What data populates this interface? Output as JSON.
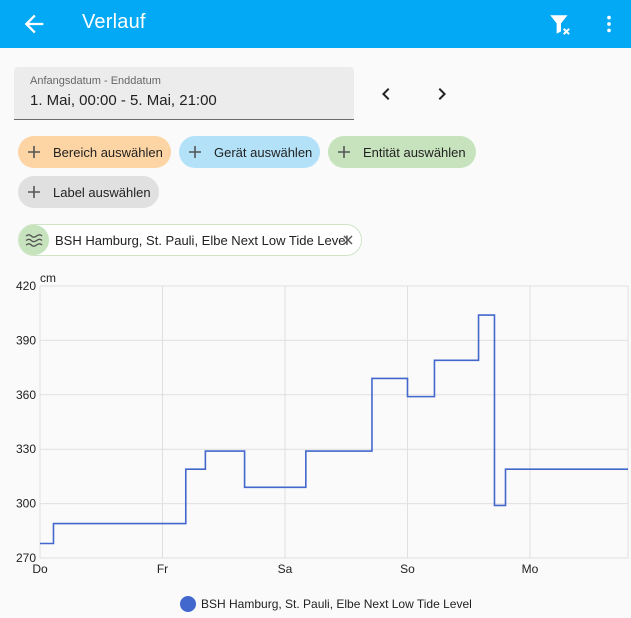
{
  "header": {
    "title": "Verlauf",
    "back_icon": "arrow-left-icon",
    "filter_clear_icon": "filter-remove-icon",
    "menu_icon": "dots-vertical-icon"
  },
  "date_range": {
    "label": "Anfangsdatum - Enddatum",
    "value": "1. Mai, 00:00 - 5. Mai, 21:00"
  },
  "pickers": [
    {
      "label": "Bereich auswählen"
    },
    {
      "label": "Gerät auswählen"
    },
    {
      "label": "Entität auswählen"
    },
    {
      "label": "Label auswählen"
    }
  ],
  "selected_entity": {
    "label": "BSH Hamburg, St. Pauli, Elbe Next Low Tide Level",
    "icon": "waves-icon"
  },
  "colors": {
    "accent": "#03a9f4",
    "series": "#4267cd"
  },
  "chart_data": {
    "type": "line",
    "step": true,
    "unit_label": "cm",
    "ylim": [
      270,
      420
    ],
    "yticks": [
      270,
      300,
      330,
      360,
      390,
      420
    ],
    "xlim": [
      0,
      4.8
    ],
    "xticks": [
      {
        "pos": 0,
        "label": "Do"
      },
      {
        "pos": 1,
        "label": "Fr"
      },
      {
        "pos": 2,
        "label": "Sa"
      },
      {
        "pos": 3,
        "label": "So"
      },
      {
        "pos": 4,
        "label": "Mo"
      }
    ],
    "grid": true,
    "legend": "bottom",
    "series": [
      {
        "name": "BSH Hamburg, St. Pauli, Elbe Next Low Tide Level",
        "points": [
          [
            0.0,
            278
          ],
          [
            0.11,
            289
          ],
          [
            1.19,
            319
          ],
          [
            1.35,
            329
          ],
          [
            1.67,
            309
          ],
          [
            2.17,
            329
          ],
          [
            2.71,
            369
          ],
          [
            3.0,
            359
          ],
          [
            3.22,
            379
          ],
          [
            3.58,
            404
          ],
          [
            3.71,
            299
          ],
          [
            3.8,
            319
          ],
          [
            4.8,
            319
          ]
        ]
      }
    ]
  }
}
